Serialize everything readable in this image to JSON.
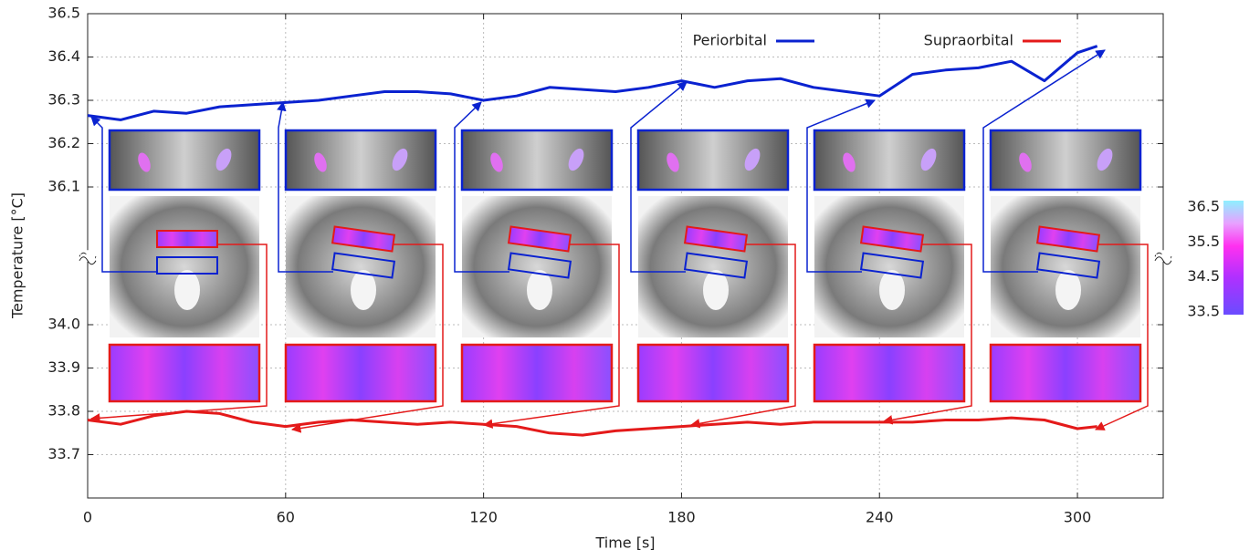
{
  "chart_data": {
    "type": "line",
    "x_label": "Time [s]",
    "y_label": "Temperature  [°C]",
    "x": [
      0,
      10,
      20,
      30,
      40,
      50,
      60,
      70,
      80,
      90,
      100,
      110,
      120,
      130,
      140,
      150,
      160,
      170,
      180,
      190,
      200,
      210,
      220,
      230,
      240,
      250,
      260,
      270,
      280,
      290,
      300,
      306
    ],
    "series": [
      {
        "name": "Periorbital",
        "color": "#0a22d0",
        "values": [
          36.265,
          36.255,
          36.275,
          36.27,
          36.285,
          36.29,
          36.295,
          36.3,
          36.31,
          36.32,
          36.32,
          36.315,
          36.3,
          36.31,
          36.33,
          36.325,
          36.32,
          36.33,
          36.345,
          36.33,
          36.345,
          36.35,
          36.33,
          36.32,
          36.31,
          36.36,
          36.37,
          36.375,
          36.39,
          36.345,
          36.41,
          36.425
        ]
      },
      {
        "name": "Supraorbital",
        "color": "#e41a1a",
        "values": [
          33.78,
          33.77,
          33.79,
          33.8,
          33.795,
          33.775,
          33.765,
          33.775,
          33.78,
          33.775,
          33.77,
          33.775,
          33.77,
          33.765,
          33.75,
          33.745,
          33.755,
          33.76,
          33.765,
          33.77,
          33.775,
          33.77,
          33.775,
          33.775,
          33.775,
          33.775,
          33.78,
          33.78,
          33.785,
          33.78,
          33.76,
          33.765
        ]
      }
    ],
    "xlim": [
      0,
      326
    ],
    "xticks": [
      0,
      60,
      120,
      180,
      240,
      300
    ],
    "ylim": [
      33.6,
      36.5
    ],
    "ybreak": [
      34.15,
      35.95
    ],
    "yticks": [
      {
        "value": 33.7,
        "label": "33.7"
      },
      {
        "value": 33.8,
        "label": "33.8"
      },
      {
        "value": 33.9,
        "label": "33.9"
      },
      {
        "value": 34.0,
        "label": "34.0"
      },
      {
        "value": 36.1,
        "label": "36.1"
      },
      {
        "value": 36.2,
        "label": "36.2"
      },
      {
        "value": 36.3,
        "label": "36.3"
      },
      36.4,
      36.5
    ],
    "grid": true,
    "legend": "top-right",
    "colorbar": {
      "lim": [
        33.5,
        36.5
      ],
      "ticks": [
        36.5,
        35.5,
        34.5,
        33.5
      ]
    }
  }
}
